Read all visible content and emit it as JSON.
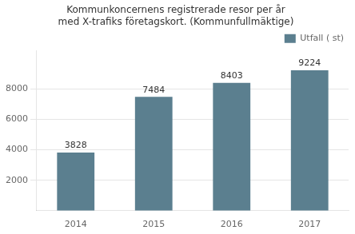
{
  "chart_data": {
    "type": "bar",
    "title": "Kommunkoncernens registrerade resor per år\nmed X-trafiks företagskort. (Kommunfullmäktige)",
    "categories": [
      "2014",
      "2015",
      "2016",
      "2017"
    ],
    "series": [
      {
        "name": "Utfall ( st)",
        "color": "#5b7f8f",
        "values": [
          3828,
          7484,
          8403,
          9224
        ]
      }
    ],
    "ylim": [
      0,
      10500
    ],
    "yticks": [
      2000,
      4000,
      6000,
      8000
    ],
    "grid": true,
    "legend": "upper right",
    "data_labels": true
  }
}
